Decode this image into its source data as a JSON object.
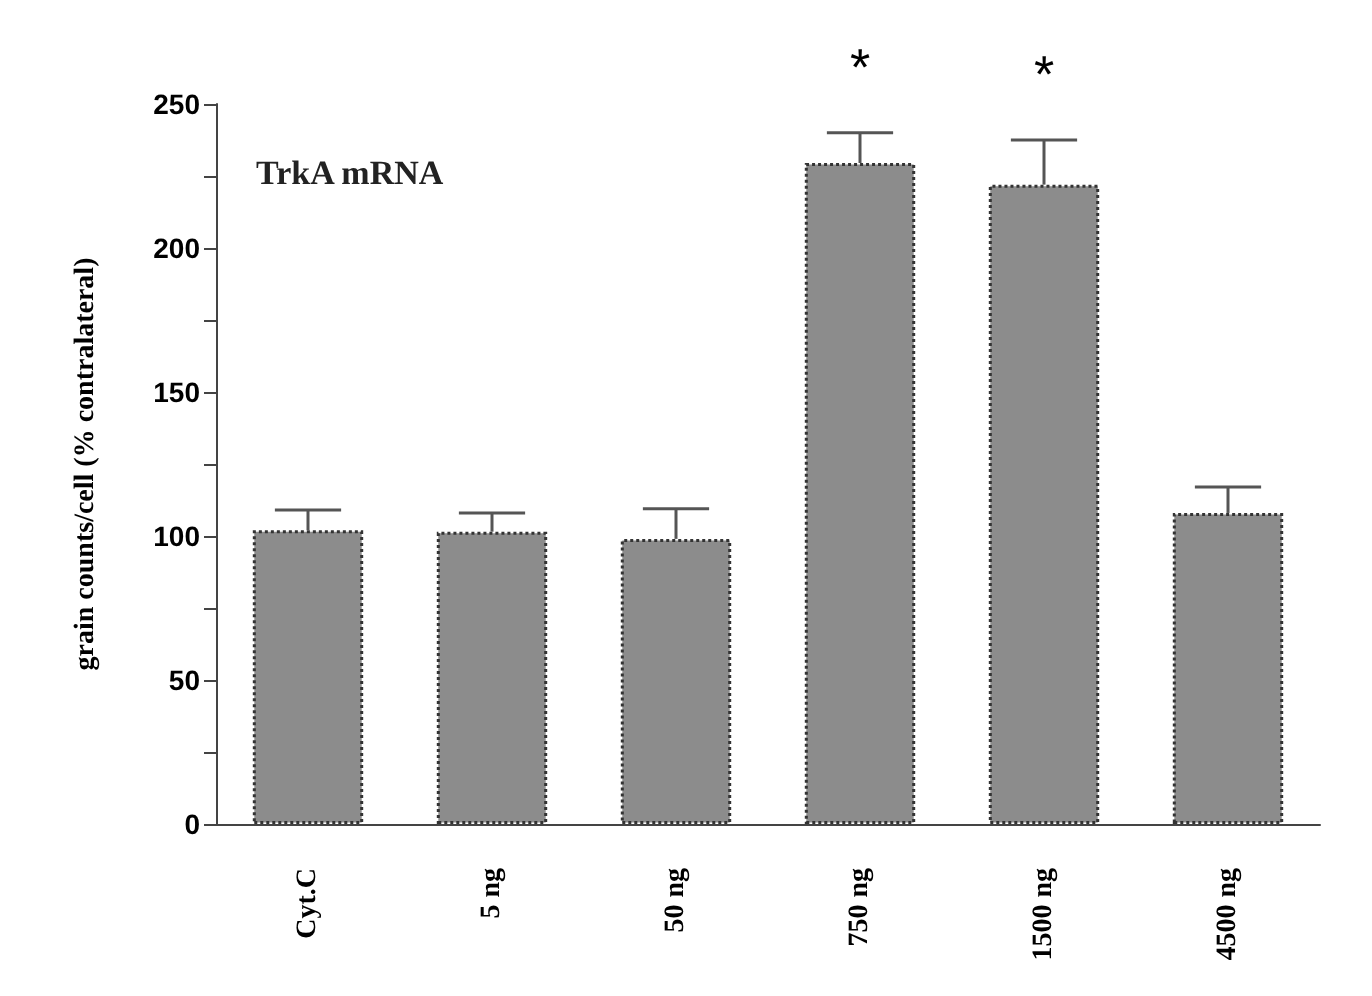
{
  "chart_data": {
    "type": "bar",
    "ylabel": "grain counts/cell (% contralateral)",
    "categories": [
      "Cyt.C",
      "5 ng",
      "50 ng",
      "750 ng",
      "1500 ng",
      "4500 ng"
    ],
    "values": [
      102,
      101.5,
      99,
      229.5,
      222,
      108
    ],
    "errors": [
      [
        102,
        109
      ],
      [
        101.5,
        108
      ],
      [
        99,
        109.5
      ],
      [
        229.5,
        240
      ],
      [
        222,
        237.5
      ],
      [
        108,
        117
      ]
    ],
    "color": "#8c8c8c",
    "ylim": [
      0,
      250
    ],
    "yticks": [
      0,
      {
        "value": 25,
        "label": null
      },
      50,
      {
        "value": 75,
        "label": null
      },
      100,
      {
        "value": 125,
        "label": null
      },
      150,
      {
        "value": 175,
        "label": null
      },
      200,
      {
        "value": 225,
        "label": null
      },
      250
    ],
    "annotations": [
      "TrkA mRNA",
      {
        "text": "*",
        "x": "750 ng",
        "y": 240
      },
      {
        "text": "*",
        "x": "1500 ng",
        "y": 237.5
      }
    ],
    "line_style": "solid"
  }
}
